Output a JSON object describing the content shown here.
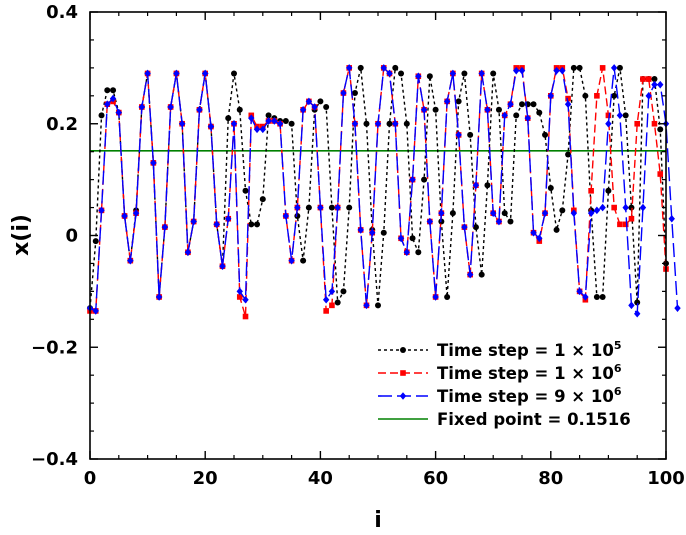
{
  "chart_data": {
    "type": "line",
    "title": "",
    "xlabel": "i",
    "ylabel": "x(i)",
    "xlim": [
      0,
      100
    ],
    "ylim": [
      -0.4,
      0.4
    ],
    "xticks": [
      "0",
      "20",
      "40",
      "60",
      "80",
      "100"
    ],
    "yticks": [
      "−0.4",
      "−0.2",
      "0",
      "0.2",
      "0.4"
    ],
    "legend_position": "bottom-right",
    "legend": [
      {
        "label": "Time step = 1 × 10",
        "exp": "5"
      },
      {
        "label": "Time step = 1 × 10",
        "exp": "6"
      },
      {
        "label": "Time step = 9 × 10",
        "exp": "6"
      },
      {
        "label": "Fixed point = 0.1516",
        "exp": ""
      }
    ],
    "fixed_point": 0.1516,
    "series": [
      {
        "name": "Time step = 1 × 10^5",
        "color": "#000000",
        "marker": "circle",
        "dash": "3,3",
        "values": [
          -0.13,
          -0.01,
          0.215,
          0.26,
          0.26,
          0.22,
          0.035,
          -0.045,
          0.045,
          0.23,
          0.29,
          0.13,
          -0.11,
          0.015,
          0.23,
          0.29,
          0.2,
          -0.03,
          0.025,
          0.225,
          0.29,
          0.195,
          0.02,
          -0.055,
          0.21,
          0.29,
          0.225,
          0.08,
          0.02,
          0.02,
          0.065,
          0.215,
          0.21,
          0.205,
          0.205,
          0.2,
          0.035,
          -0.045,
          0.05,
          0.225,
          0.24,
          0.23,
          0.05,
          -0.12,
          -0.1,
          0.05,
          0.255,
          0.3,
          0.2,
          0.01,
          -0.125,
          0.005,
          0.2,
          0.3,
          0.29,
          0.2,
          -0.005,
          -0.03,
          0.1,
          0.285,
          0.225,
          0.025,
          -0.11,
          0.04,
          0.24,
          0.29,
          0.18,
          0.015,
          -0.07,
          0.09,
          0.29,
          0.225,
          0.04,
          0.025,
          0.215,
          0.235,
          0.235,
          0.235,
          0.22,
          0.18,
          0.085,
          0.01,
          0.045,
          0.145,
          0.3,
          0.3,
          0.25,
          0.045,
          -0.11,
          -0.11,
          0.08,
          0.25,
          0.3,
          0.215,
          0.05,
          -0.12,
          0.28,
          0.28,
          0.28,
          0.19,
          -0.05
        ]
      },
      {
        "name": "Time step = 1 × 10^6",
        "color": "#ff0000",
        "marker": "square",
        "dash": "8,4",
        "values": [
          -0.135,
          -0.135,
          0.045,
          0.235,
          0.24,
          0.22,
          0.035,
          -0.045,
          0.04,
          0.23,
          0.29,
          0.13,
          -0.11,
          0.015,
          0.23,
          0.29,
          0.2,
          -0.03,
          0.025,
          0.225,
          0.29,
          0.195,
          0.02,
          -0.055,
          0.03,
          0.2,
          -0.11,
          -0.145,
          0.215,
          0.195,
          0.195,
          0.205,
          0.205,
          0.2,
          0.035,
          -0.045,
          0.05,
          0.225,
          0.24,
          0.23,
          0.05,
          -0.135,
          -0.125,
          0.05,
          0.255,
          0.3,
          0.2,
          0.01,
          -0.125,
          0.005,
          0.2,
          0.3,
          0.29,
          0.2,
          -0.005,
          -0.03,
          0.1,
          0.285,
          0.225,
          0.025,
          -0.11,
          0.04,
          0.24,
          0.29,
          0.18,
          0.015,
          -0.07,
          0.09,
          0.29,
          0.225,
          0.04,
          0.025,
          0.215,
          0.235,
          0.3,
          0.3,
          0.21,
          0.005,
          -0.01,
          0.04,
          0.25,
          0.3,
          0.3,
          0.245,
          0.045,
          -0.1,
          -0.115,
          0.08,
          0.25,
          0.3,
          0.215,
          0.05,
          0.02,
          0.02,
          0.03,
          0.2,
          0.28,
          0.28,
          0.2,
          0.11,
          -0.06
        ]
      },
      {
        "name": "Time step = 9 × 10^6",
        "color": "#0000ff",
        "marker": "diamond",
        "dash": "14,5",
        "values": [
          -0.13,
          -0.135,
          0.045,
          0.235,
          0.245,
          0.22,
          0.035,
          -0.045,
          0.04,
          0.23,
          0.29,
          0.13,
          -0.11,
          0.015,
          0.23,
          0.29,
          0.2,
          -0.03,
          0.025,
          0.225,
          0.29,
          0.195,
          0.02,
          -0.055,
          0.03,
          0.2,
          -0.1,
          -0.115,
          0.21,
          0.19,
          0.19,
          0.205,
          0.205,
          0.2,
          0.035,
          -0.045,
          0.05,
          0.225,
          0.24,
          0.23,
          0.05,
          -0.115,
          -0.1,
          0.05,
          0.255,
          0.3,
          0.2,
          0.01,
          -0.125,
          0.005,
          0.2,
          0.3,
          0.29,
          0.2,
          -0.005,
          -0.03,
          0.1,
          0.285,
          0.225,
          0.025,
          -0.11,
          0.04,
          0.24,
          0.29,
          0.18,
          0.015,
          -0.07,
          0.09,
          0.29,
          0.225,
          0.04,
          0.025,
          0.215,
          0.235,
          0.295,
          0.295,
          0.21,
          0.005,
          -0.005,
          0.04,
          0.25,
          0.295,
          0.295,
          0.235,
          0.04,
          -0.1,
          -0.11,
          0.04,
          0.045,
          0.05,
          0.2,
          0.3,
          0.215,
          0.05,
          -0.125,
          -0.14,
          0.05,
          0.25,
          0.27,
          0.27,
          0.2,
          0.03,
          -0.13
        ]
      }
    ]
  }
}
